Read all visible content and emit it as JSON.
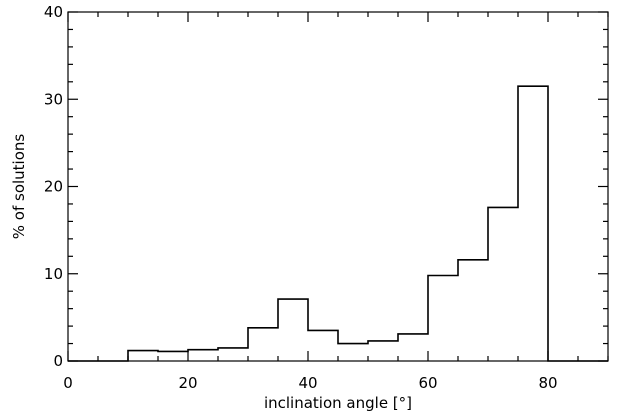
{
  "chart_data": {
    "type": "bar",
    "style": "step-histogram",
    "xlabel": "inclination angle [°]",
    "ylabel": "% of solutions",
    "xlim": [
      0,
      90
    ],
    "ylim": [
      0,
      40
    ],
    "grid": false,
    "x_ticks": [
      "0",
      "20",
      "40",
      "60",
      "80"
    ],
    "y_ticks": [
      "0",
      "10",
      "20",
      "30",
      "40"
    ],
    "bin_edges": [
      0,
      5,
      10,
      15,
      20,
      25,
      30,
      35,
      40,
      45,
      50,
      55,
      60,
      65,
      70,
      75,
      80,
      85,
      90
    ],
    "values": [
      0,
      0,
      1.2,
      1.1,
      1.3,
      1.5,
      3.8,
      7.1,
      3.5,
      2.0,
      2.3,
      3.1,
      9.8,
      11.6,
      17.6,
      31.5,
      0,
      0
    ],
    "line_color": "#000000"
  }
}
